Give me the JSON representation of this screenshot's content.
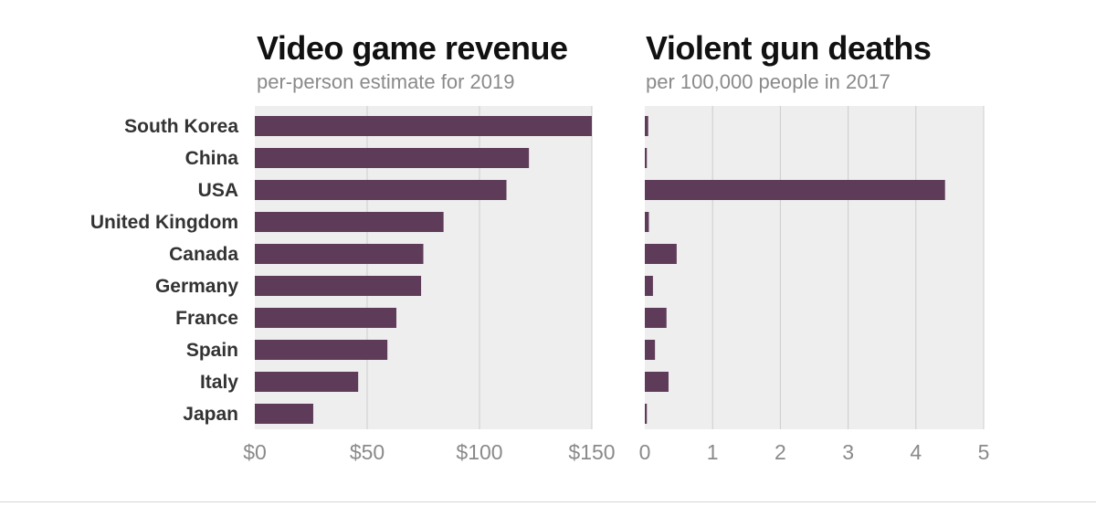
{
  "chart_data": [
    {
      "type": "bar",
      "orientation": "horizontal",
      "title": "Video game revenue",
      "subtitle": "per-person estimate for 2019",
      "categories": [
        "South Korea",
        "China",
        "USA",
        "United Kingdom",
        "Canada",
        "Germany",
        "France",
        "Spain",
        "Italy",
        "Japan"
      ],
      "values": [
        150,
        122,
        112,
        84,
        75,
        74,
        63,
        59,
        46,
        26
      ],
      "xlim": [
        0,
        150
      ],
      "ticks": [
        0,
        50,
        100,
        150
      ],
      "tick_labels": [
        "$0",
        "$50",
        "$100",
        "$150"
      ],
      "grid": true
    },
    {
      "type": "bar",
      "orientation": "horizontal",
      "title": "Violent gun deaths",
      "subtitle": "per 100,000 people in 2017",
      "categories": [
        "South Korea",
        "China",
        "USA",
        "United Kingdom",
        "Canada",
        "Germany",
        "France",
        "Spain",
        "Italy",
        "Japan"
      ],
      "values": [
        0.05,
        0.03,
        4.43,
        0.06,
        0.47,
        0.12,
        0.32,
        0.15,
        0.35,
        0.03
      ],
      "xlim": [
        0,
        5
      ],
      "ticks": [
        0,
        1,
        2,
        3,
        4,
        5
      ],
      "tick_labels": [
        "0",
        "1",
        "2",
        "3",
        "4",
        "5"
      ],
      "grid": true
    }
  ],
  "colors": {
    "bar": "#5e3b58",
    "panel_background": "#eeeeee",
    "grid": "#cdcdcd",
    "tick_text": "#8a8a8a",
    "category_text": "#333333"
  }
}
